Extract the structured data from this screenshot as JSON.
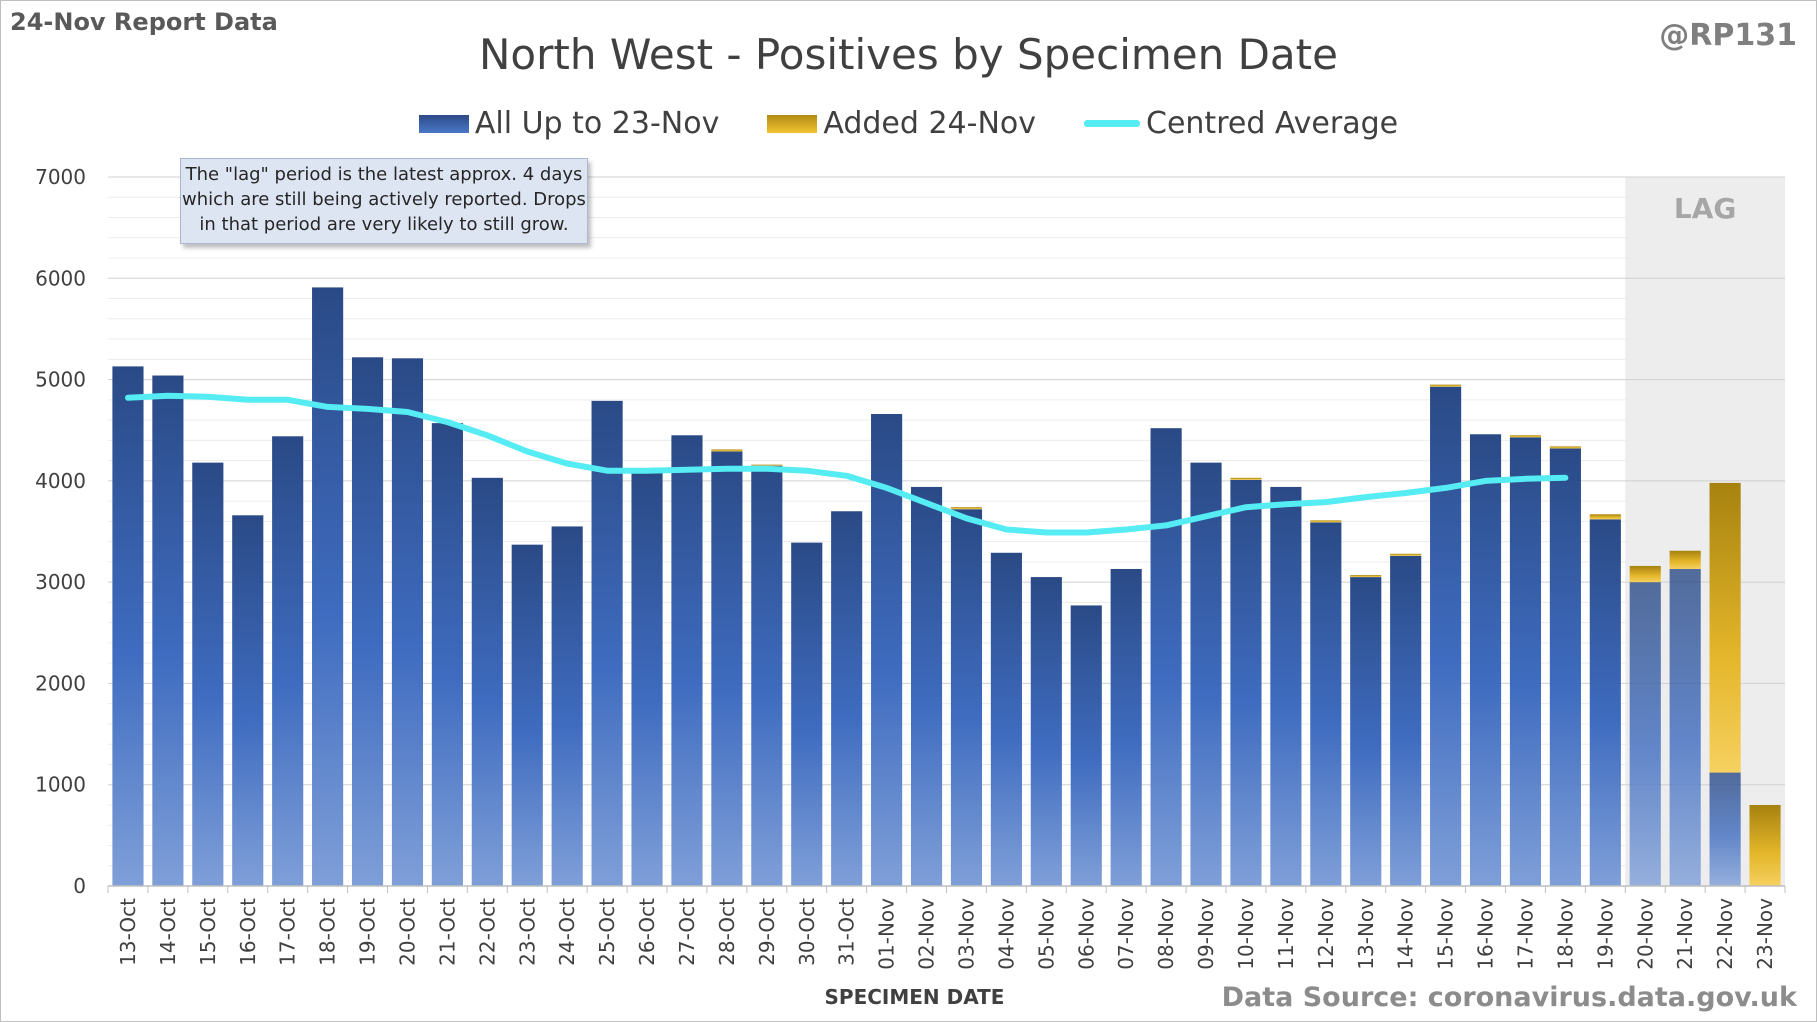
{
  "header": {
    "report_label": "24-Nov Report Data",
    "handle": "@RP131",
    "source": "Data Source: coronavirus.data.gov.uk"
  },
  "annotation": {
    "lines": [
      "The \"lag\" period is the latest approx. 4 days",
      "which are still being actively reported.  Drops",
      "in that period are very likely to still grow."
    ]
  },
  "chart_data": {
    "type": "bar",
    "stacked": true,
    "title": "North West - Positives by Specimen Date",
    "xlabel": "SPECIMEN DATE",
    "ylabel": "",
    "ylim": [
      0,
      7000
    ],
    "yticks": [
      0,
      1000,
      2000,
      3000,
      4000,
      5000,
      6000,
      7000
    ],
    "grid": true,
    "legend_position": "top",
    "lag_band": {
      "label": "LAG",
      "from": "20-Nov",
      "to": "23-Nov"
    },
    "colors": {
      "all_up_to": "#3a5fa8",
      "added": "#e0b324",
      "average": "#55ecf3",
      "lag_band": "#ededed"
    },
    "categories": [
      "13-Oct",
      "14-Oct",
      "15-Oct",
      "16-Oct",
      "17-Oct",
      "18-Oct",
      "19-Oct",
      "20-Oct",
      "21-Oct",
      "22-Oct",
      "23-Oct",
      "24-Oct",
      "25-Oct",
      "26-Oct",
      "27-Oct",
      "28-Oct",
      "29-Oct",
      "30-Oct",
      "31-Oct",
      "01-Nov",
      "02-Nov",
      "03-Nov",
      "04-Nov",
      "05-Nov",
      "06-Nov",
      "07-Nov",
      "08-Nov",
      "09-Nov",
      "10-Nov",
      "11-Nov",
      "12-Nov",
      "13-Nov",
      "14-Nov",
      "15-Nov",
      "16-Nov",
      "17-Nov",
      "18-Nov",
      "19-Nov",
      "20-Nov",
      "21-Nov",
      "22-Nov",
      "23-Nov"
    ],
    "series": [
      {
        "name": "All Up to 23-Nov",
        "values": [
          5130,
          5040,
          4180,
          3660,
          4440,
          5910,
          5220,
          5210,
          4570,
          4030,
          3370,
          3550,
          4790,
          4080,
          4450,
          4290,
          4150,
          3390,
          3700,
          4660,
          3940,
          3720,
          3290,
          3050,
          2770,
          3130,
          4520,
          4180,
          4010,
          3940,
          3590,
          3050,
          3260,
          4930,
          4460,
          4430,
          4320,
          3620,
          3000,
          3130,
          1120,
          0
        ]
      },
      {
        "name": "Added 24-Nov",
        "values": [
          0,
          0,
          0,
          0,
          0,
          0,
          0,
          0,
          0,
          0,
          0,
          0,
          0,
          0,
          0,
          20,
          10,
          0,
          0,
          0,
          0,
          20,
          0,
          0,
          0,
          0,
          0,
          0,
          20,
          0,
          20,
          20,
          20,
          20,
          0,
          20,
          20,
          50,
          160,
          180,
          2860,
          800
        ]
      },
      {
        "name": "Centred Average",
        "type": "line",
        "values": [
          4820,
          4840,
          4830,
          4800,
          4800,
          4730,
          4710,
          4680,
          4580,
          4450,
          4290,
          4170,
          4100,
          4100,
          4110,
          4120,
          4120,
          4100,
          4050,
          3930,
          3780,
          3630,
          3520,
          3490,
          3490,
          3520,
          3560,
          3650,
          3740,
          3770,
          3790,
          3840,
          3880,
          3930,
          4000,
          4020,
          4030,
          null,
          null,
          null,
          null,
          null
        ]
      }
    ]
  }
}
